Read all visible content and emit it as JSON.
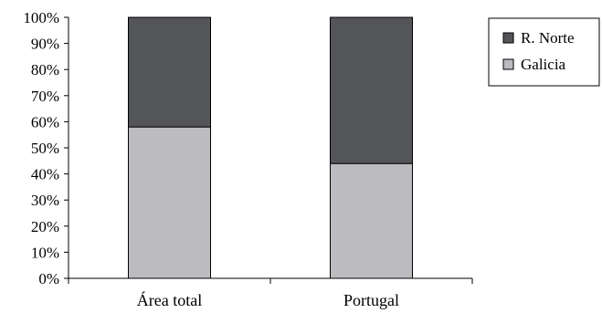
{
  "chart_data": {
    "type": "bar",
    "stacked": true,
    "normalized": true,
    "categories": [
      "Área total",
      "Portugal"
    ],
    "series": [
      {
        "name": "Galicia",
        "values": [
          58,
          44
        ],
        "color": "#bcbcc0"
      },
      {
        "name": "R. Norte",
        "values": [
          42,
          56
        ],
        "color": "#545558"
      }
    ],
    "yticks": [
      "0%",
      "10%",
      "20%",
      "30%",
      "40%",
      "50%",
      "60%",
      "70%",
      "80%",
      "90%",
      "100%"
    ],
    "ylim": [
      0,
      100
    ],
    "title": "",
    "xlabel": "",
    "ylabel": "",
    "grid": false,
    "legend": {
      "placement": "top-right",
      "entries": [
        {
          "label": "R. Norte",
          "color": "#545558"
        },
        {
          "label": "Galicia",
          "color": "#bcbcc0"
        }
      ]
    }
  }
}
